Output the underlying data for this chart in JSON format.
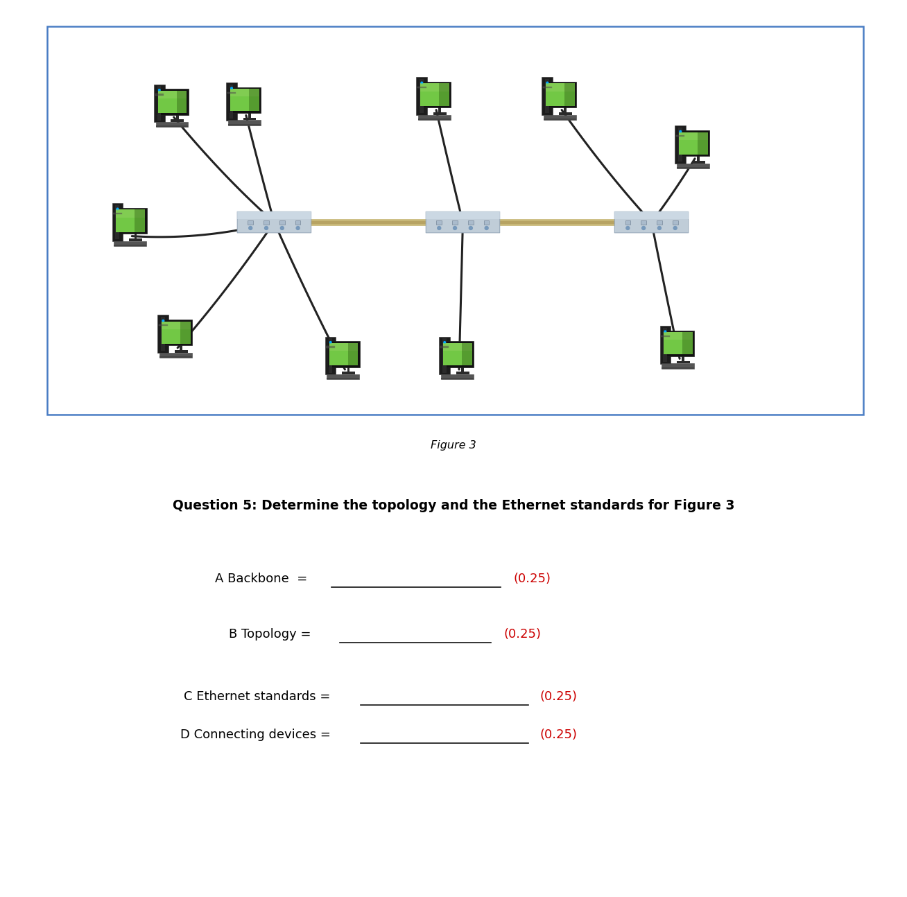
{
  "figure_caption": "Figure 3",
  "question_title": "Question 5: Determine the topology and the Ethernet standards for Figure 3",
  "items": [
    {
      "label": "A Backbone  = ",
      "score": "(0.25)"
    },
    {
      "label": "B Topology = ",
      "score": "(0.25)"
    },
    {
      "label": "C Ethernet standards = ",
      "score": "(0.25)"
    },
    {
      "label": "D Connecting devices = ",
      "score": "(0.25)"
    }
  ],
  "border_color": "#4A7DC4",
  "border_linewidth": 1.8,
  "bg_color": "#ffffff",
  "text_color": "#000000",
  "score_color": "#CC0000",
  "caption_style": "italic",
  "caption_fontsize": 11.5,
  "title_fontsize": 13.5,
  "label_fontsize": 13,
  "score_fontsize": 13,
  "hub_color": "#b8c8d8",
  "hub_edge_color": "#8899aa",
  "backbone_color": "#c8b878",
  "cable_color": "#222222",
  "monitor_screen_color": "#70c040",
  "monitor_frame_color": "#111111",
  "tower_color": "#1a1a1a",
  "keyboard_color": "#666666",
  "computers": [
    {
      "nx": 0.135,
      "ny": 0.815,
      "hub": 0
    },
    {
      "nx": 0.355,
      "ny": 0.875,
      "hub": 0
    },
    {
      "nx": 0.505,
      "ny": 0.875,
      "hub": 1
    },
    {
      "nx": 0.795,
      "ny": 0.845,
      "hub": 2
    },
    {
      "nx": 0.075,
      "ny": 0.505,
      "hub": 0
    },
    {
      "nx": 0.13,
      "ny": 0.175,
      "hub": 0
    },
    {
      "nx": 0.225,
      "ny": 0.17,
      "hub": 0
    },
    {
      "nx": 0.475,
      "ny": 0.155,
      "hub": 1
    },
    {
      "nx": 0.64,
      "ny": 0.155,
      "hub": 2
    },
    {
      "nx": 0.815,
      "ny": 0.29,
      "hub": 2
    }
  ],
  "hubs": [
    {
      "nx": 0.262,
      "ny": 0.505
    },
    {
      "nx": 0.51,
      "ny": 0.505
    },
    {
      "nx": 0.758,
      "ny": 0.505
    }
  ]
}
